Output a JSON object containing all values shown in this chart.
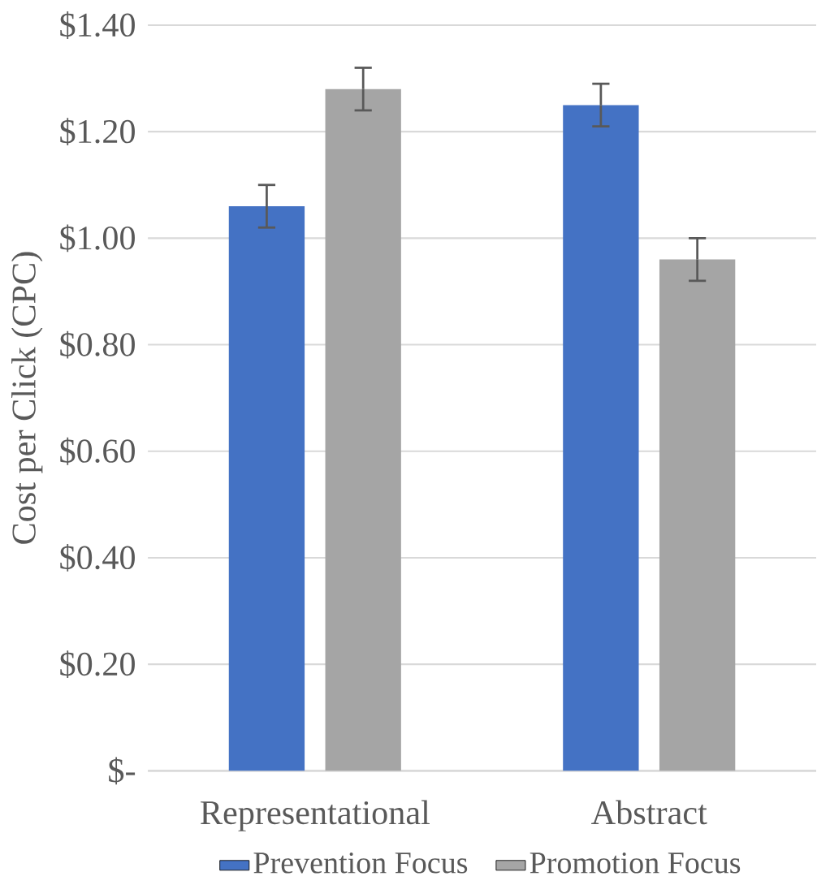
{
  "chart_data": {
    "type": "bar",
    "categories": [
      "Representational",
      "Abstract"
    ],
    "series": [
      {
        "name": "Prevention Focus",
        "color": "#4472c4",
        "values": [
          1.06,
          1.25
        ],
        "errors": [
          0.04,
          0.04
        ]
      },
      {
        "name": "Promotion Focus",
        "color": "#a5a5a5",
        "values": [
          1.28,
          0.96
        ],
        "errors": [
          0.04,
          0.04
        ]
      }
    ],
    "ylabel": "Cost per Click (CPC)",
    "ylim": [
      0,
      1.4
    ],
    "yticks": [
      {
        "value": 0,
        "label": "$-"
      },
      {
        "value": 0.2,
        "label": "$0.20"
      },
      {
        "value": 0.4,
        "label": "$0.40"
      },
      {
        "value": 0.6,
        "label": "$0.60"
      },
      {
        "value": 0.8,
        "label": "$0.80"
      },
      {
        "value": 1.0,
        "label": "$1.00"
      },
      {
        "value": 1.2,
        "label": "$1.20"
      },
      {
        "value": 1.4,
        "label": "$1.40"
      }
    ],
    "grid": "y",
    "legend": "bottom"
  }
}
